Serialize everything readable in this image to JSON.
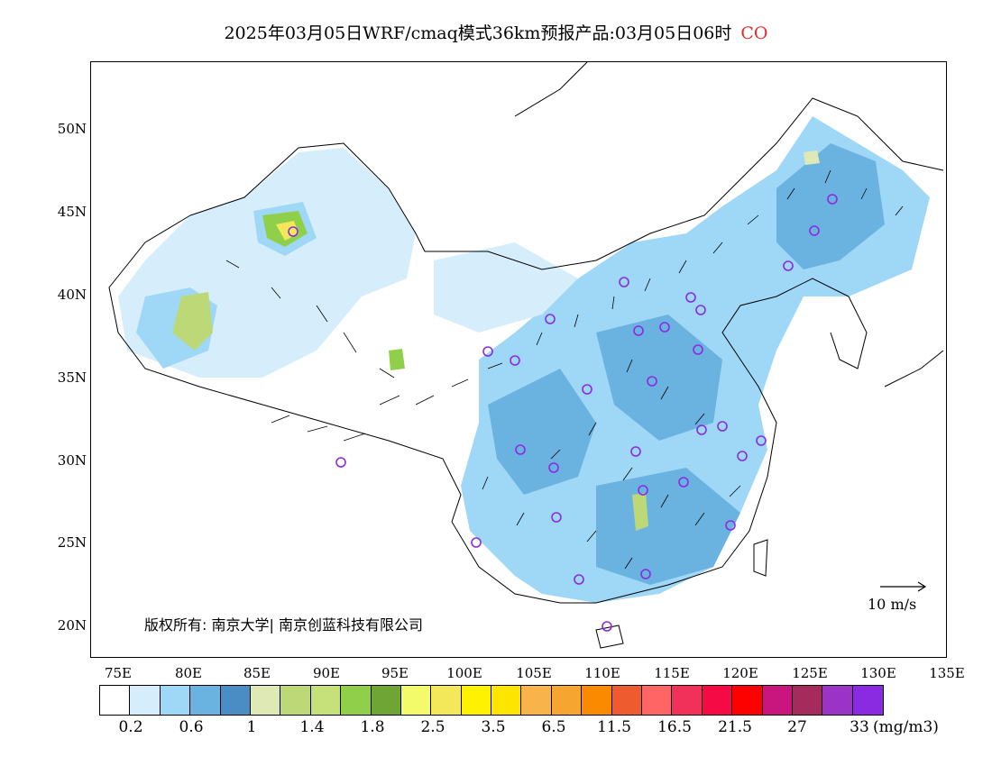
{
  "title": {
    "main": "2025年03月05日WRF/cmaq模式36km预报产品:03月05日06时",
    "species": "CO",
    "species_color": "#e0302a"
  },
  "map": {
    "lat_labels": [
      "50N",
      "45N",
      "40N",
      "35N",
      "30N",
      "25N",
      "20N"
    ],
    "lon_labels": [
      "75E",
      "80E",
      "85E",
      "90E",
      "95E",
      "100E",
      "105E",
      "110E",
      "115E",
      "120E",
      "125E",
      "130E",
      "135E"
    ],
    "wind_scale_label": "10 m/s",
    "copyright": "版权所有: 南京大学| 南京创蓝科技有限公司"
  },
  "colorbar": {
    "colors": [
      "#ffffff",
      "#d6eefb",
      "#9fd8f6",
      "#6ab3e0",
      "#4a8cc4",
      "#dfe9b6",
      "#bcd877",
      "#c6e17a",
      "#8fcf4a",
      "#6ea534",
      "#f3fb6a",
      "#f3e85a",
      "#fff200",
      "#fde500",
      "#f8b44a",
      "#f7a531",
      "#fb8a00",
      "#ee5b2f",
      "#ff6565",
      "#f1315a",
      "#f50a45",
      "#fd0000",
      "#c9157e",
      "#a52b5c",
      "#9b33c6",
      "#8a2be2"
    ],
    "labels": [
      "0.2",
      "0.6",
      "1",
      "1.4",
      "1.8",
      "2.5",
      "3.5",
      "6.5",
      "11.5",
      "16.5",
      "21.5",
      "27",
      "33"
    ],
    "unit": "(mg/m3)"
  }
}
